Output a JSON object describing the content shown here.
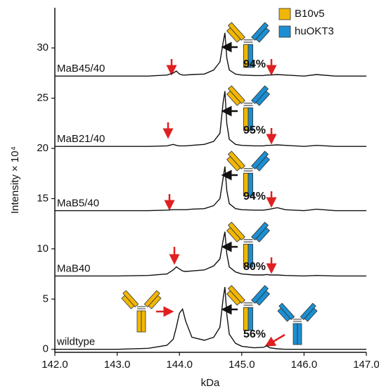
{
  "chart_data": {
    "type": "line",
    "x_label": "kDa",
    "y_label": "Intensity × 10⁴",
    "xlim": [
      142,
      147
    ],
    "xticks": [
      {
        "value": 142,
        "label": "142.0"
      },
      {
        "value": 143,
        "label": "143.0"
      },
      {
        "value": 144,
        "label": "144.0"
      },
      {
        "value": 145,
        "label": "145.0"
      },
      {
        "value": 146,
        "label": "146.0"
      },
      {
        "value": 147,
        "label": "147.0"
      }
    ],
    "ylim": [
      -0.3,
      34
    ],
    "yticks": [
      0,
      5,
      10,
      15,
      20,
      25,
      30
    ],
    "legend": [
      {
        "label": "B10v5",
        "color": "#f2b705"
      },
      {
        "label": "huOKT3",
        "color": "#1b8fd2"
      }
    ],
    "x": [
      142.0,
      142.5,
      143.0,
      143.5,
      143.8,
      143.9,
      143.95,
      144.0,
      144.05,
      144.1,
      144.2,
      144.4,
      144.55,
      144.65,
      144.7,
      144.73,
      144.76,
      144.8,
      144.9,
      145.0,
      145.2,
      145.35,
      145.4,
      145.45,
      145.57,
      145.7,
      146.0,
      146.2,
      146.5,
      147.0
    ],
    "series": [
      {
        "name": "MaB45/40",
        "color": "#111111",
        "annotation": "94%",
        "values": [
          27.2,
          27.2,
          27.2,
          27.2,
          27.3,
          27.5,
          27.7,
          27.4,
          27.3,
          27.3,
          27.35,
          27.4,
          27.8,
          28.6,
          30.5,
          31.5,
          29.0,
          27.8,
          27.4,
          27.3,
          27.25,
          27.25,
          27.3,
          27.3,
          27.35,
          27.3,
          27.2,
          27.35,
          27.2,
          27.2
        ]
      },
      {
        "name": "MaB21/40",
        "color": "#111111",
        "annotation": "95%",
        "values": [
          20.2,
          20.2,
          20.2,
          20.2,
          20.25,
          20.4,
          20.3,
          20.25,
          20.25,
          20.25,
          20.3,
          20.4,
          20.7,
          21.5,
          24.5,
          25.7,
          22.5,
          20.9,
          20.4,
          20.3,
          20.25,
          20.25,
          20.3,
          20.3,
          20.35,
          20.3,
          20.2,
          20.3,
          20.2,
          20.2
        ]
      },
      {
        "name": "MaB5/40",
        "color": "#111111",
        "annotation": "94%",
        "values": [
          13.8,
          13.8,
          13.8,
          13.8,
          13.85,
          13.9,
          13.9,
          13.9,
          13.9,
          13.9,
          13.95,
          14.0,
          14.3,
          15.0,
          17.0,
          18.2,
          15.8,
          14.5,
          14.0,
          13.9,
          13.85,
          13.85,
          13.9,
          13.95,
          14.1,
          13.9,
          13.8,
          13.95,
          13.8,
          13.8
        ]
      },
      {
        "name": "MaB40",
        "color": "#111111",
        "annotation": "80%",
        "values": [
          7.3,
          7.3,
          7.3,
          7.35,
          7.5,
          7.9,
          8.2,
          8.0,
          7.8,
          7.75,
          7.8,
          7.9,
          8.3,
          9.0,
          10.8,
          11.7,
          9.5,
          8.2,
          7.7,
          7.5,
          7.4,
          7.4,
          7.45,
          7.4,
          7.4,
          7.35,
          7.3,
          7.35,
          7.3,
          7.3
        ]
      },
      {
        "name": "wildtype",
        "color": "#111111",
        "annotation": "56%",
        "values": [
          0,
          0,
          0,
          0.1,
          0.4,
          1.0,
          2.2,
          3.6,
          4.0,
          2.8,
          1.2,
          0.9,
          1.2,
          2.2,
          5.0,
          6.2,
          3.5,
          1.5,
          0.6,
          0.3,
          0.15,
          0.2,
          0.35,
          0.15,
          0.05,
          0,
          0,
          0,
          0,
          0
        ]
      }
    ]
  }
}
